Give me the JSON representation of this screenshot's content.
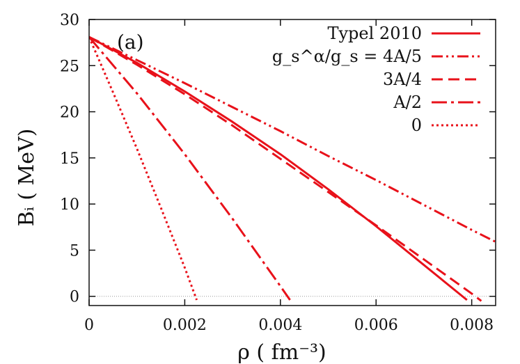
{
  "chart_data": {
    "type": "line",
    "panel_label": "(a)",
    "xlabel": "ρ ( fm⁻³)",
    "ylabel": "Bᵢ ( MeV)",
    "xlim": [
      0,
      0.0085
    ],
    "ylim": [
      -1,
      30
    ],
    "x_ticks": [
      0,
      0.002,
      0.004,
      0.006,
      0.008
    ],
    "x_tick_labels": [
      "0",
      "0.002",
      "0.004",
      "0.006",
      "0.008"
    ],
    "y_ticks": [
      0,
      5,
      10,
      15,
      20,
      25,
      30
    ],
    "y_tick_labels": [
      "0",
      "5",
      "10",
      "15",
      "20",
      "25",
      "30"
    ],
    "legend_position": "top-right",
    "color": "#e8111a",
    "series": [
      {
        "name": "Typel 2010",
        "dash": "solid",
        "x": [
          0,
          0.001,
          0.002,
          0.003,
          0.004,
          0.005,
          0.006,
          0.007,
          0.0079
        ],
        "y": [
          28.1,
          25.3,
          22.2,
          18.9,
          15.4,
          11.6,
          7.6,
          3.4,
          -0.4
        ]
      },
      {
        "name": "g_s^α/g_s = 4A/5",
        "dash": "dash-dot-dot",
        "x": [
          0,
          0.001,
          0.002,
          0.003,
          0.004,
          0.005,
          0.006,
          0.007,
          0.008,
          0.0085
        ],
        "y": [
          28.1,
          25.6,
          23.1,
          20.5,
          17.9,
          15.2,
          12.6,
          9.9,
          7.2,
          5.9
        ]
      },
      {
        "name": "3A/4",
        "dash": "dashed",
        "x": [
          0,
          0.001,
          0.002,
          0.003,
          0.004,
          0.005,
          0.006,
          0.007,
          0.008,
          0.0082
        ],
        "y": [
          28.1,
          25.1,
          21.9,
          18.5,
          14.9,
          11.3,
          7.7,
          4.0,
          0.3,
          -0.5
        ]
      },
      {
        "name": "A/2",
        "dash": "dash-dot",
        "x": [
          0,
          0.001,
          0.002,
          0.003,
          0.004,
          0.0042
        ],
        "y": [
          28.1,
          22.0,
          15.4,
          8.4,
          1.1,
          -0.4
        ]
      },
      {
        "name": "0",
        "dash": "dotted",
        "x": [
          0,
          0.0005,
          0.001,
          0.0015,
          0.002,
          0.00225
        ],
        "y": [
          28.1,
          22.1,
          16.0,
          9.6,
          3.1,
          -0.4
        ]
      }
    ]
  }
}
